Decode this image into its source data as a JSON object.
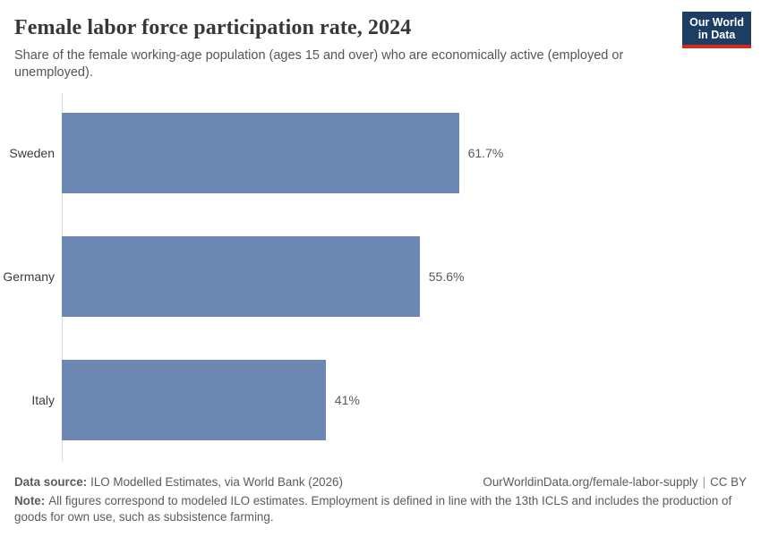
{
  "header": {
    "title": "Female labor force participation rate, 2024",
    "subtitle": "Share of the female working-age population (ages 15 and over) who are economically active (employed or unemployed).",
    "logo_line1": "Our World",
    "logo_line2": "in Data"
  },
  "chart_data": {
    "type": "bar",
    "orientation": "horizontal",
    "title": "Female labor force participation rate, 2024",
    "categories": [
      "Sweden",
      "Germany",
      "Italy"
    ],
    "values": [
      61.7,
      55.6,
      41
    ],
    "value_labels": [
      "61.7%",
      "55.6%",
      "41%"
    ],
    "xlabel": "",
    "ylabel": "",
    "xlim": [
      0,
      100
    ],
    "grid": false,
    "legend": "none",
    "bar_color": "#6c87b1"
  },
  "footer": {
    "source_label": "Data source:",
    "source_text": "ILO Modelled Estimates, via World Bank (2026)",
    "link_text": "OurWorldinData.org/female-labor-supply",
    "divider": "|",
    "license_text": "CC BY",
    "note_label": "Note:",
    "note_text": "All figures correspond to modeled ILO estimates. Employment is defined in line with the 13th ICLS and includes the production of goods for own use, such as subsistence farming."
  },
  "colors": {
    "bar": "#6c87b1",
    "axis_line": "#dcdcdc",
    "logo_navy": "#1d3d63",
    "logo_red": "#d42b21"
  }
}
